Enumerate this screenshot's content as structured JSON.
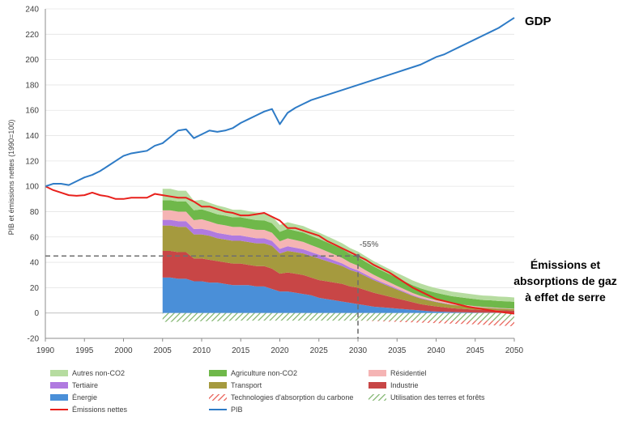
{
  "chart_data": {
    "type": "area",
    "ylabel": "PIB et émissions nettes (1990=100)",
    "xlim": [
      1990,
      2050
    ],
    "ylim": [
      -20,
      240
    ],
    "x_ticks": [
      "1990",
      "1995",
      "2000",
      "2005",
      "2010",
      "2015",
      "2020",
      "2025",
      "2030",
      "2035",
      "2040",
      "2045",
      "2050"
    ],
    "y_ticks": [
      "-20",
      "0",
      "20",
      "40",
      "60",
      "80",
      "100",
      "120",
      "140",
      "160",
      "180",
      "200",
      "220",
      "240"
    ],
    "annotations": {
      "gdp": "GDP",
      "emissions_line1": "Émissions et",
      "emissions_line2": "absorptions de gaz",
      "emissions_line3": "à effet de serre",
      "reduction": "-55%",
      "reduction_x": 2030,
      "reduction_y": 45
    },
    "area_x": [
      2005,
      2006,
      2007,
      2008,
      2009,
      2010,
      2011,
      2012,
      2013,
      2014,
      2015,
      2016,
      2017,
      2018,
      2019,
      2020,
      2021,
      2022,
      2023,
      2024,
      2025,
      2026,
      2027,
      2028,
      2029,
      2030,
      2031,
      2032,
      2033,
      2034,
      2035,
      2036,
      2037,
      2038,
      2039,
      2040,
      2041,
      2042,
      2043,
      2044,
      2045,
      2046,
      2047,
      2048,
      2049,
      2050
    ],
    "stacked_positive": [
      {
        "name": "Énergie",
        "color": "#4a8fd8",
        "values": [
          28,
          28,
          27,
          27,
          25,
          25,
          24,
          24,
          23,
          22,
          22,
          22,
          21,
          21,
          19,
          17,
          17,
          16,
          15,
          14,
          12,
          11,
          10,
          9,
          8,
          7,
          6,
          5,
          4.5,
          4,
          3.5,
          3,
          2.5,
          2,
          1.5,
          1.2,
          1,
          0.8,
          0.6,
          0.5,
          0.4,
          0.3,
          0.3,
          0.2,
          0.2,
          0.2
        ]
      },
      {
        "name": "Industrie",
        "color": "#c84646",
        "values": [
          21,
          21,
          21,
          21,
          18,
          18,
          18,
          17,
          17,
          17,
          17,
          16,
          16,
          16,
          16,
          14,
          15,
          15,
          15,
          14,
          14,
          14,
          14,
          14,
          13,
          13,
          12,
          11,
          10,
          9,
          8,
          7,
          6,
          5,
          4.5,
          4,
          3.5,
          3,
          2.8,
          2.5,
          2.3,
          2.1,
          2,
          1.9,
          1.8,
          1.7
        ]
      },
      {
        "name": "Transport",
        "color": "#a59a3e",
        "values": [
          20,
          20,
          20,
          20,
          19,
          19,
          19,
          18,
          18,
          18,
          18,
          18,
          18,
          18,
          18,
          16,
          17,
          17,
          17,
          17,
          17,
          16,
          15,
          14,
          13,
          12,
          11,
          10,
          9,
          8,
          7,
          6,
          5,
          4.5,
          4,
          3.5,
          3,
          2.7,
          2.4,
          2.2,
          2,
          1.8,
          1.6,
          1.4,
          1.2,
          1
        ]
      },
      {
        "name": "Tertiaire",
        "color": "#b07ae0",
        "values": [
          4.5,
          4.5,
          4.5,
          4.5,
          4.3,
          4.5,
          4.2,
          4.2,
          4.2,
          4.1,
          4.1,
          4,
          4,
          4,
          3.9,
          3.6,
          3.7,
          3.5,
          3.3,
          3.1,
          3,
          2.7,
          2.4,
          2.1,
          1.8,
          1.6,
          1.4,
          1.2,
          1,
          0.9,
          0.8,
          0.7,
          0.6,
          0.5,
          0.4,
          0.3,
          0.3,
          0.2,
          0.2,
          0.2,
          0.1,
          0.1,
          0.1,
          0.1,
          0.1,
          0.1
        ]
      },
      {
        "name": "Résidentiel",
        "color": "#f5b4b4",
        "values": [
          7.5,
          7.5,
          7.5,
          7.5,
          7,
          7.5,
          7,
          7,
          7,
          6.8,
          6.8,
          6.8,
          6.7,
          6.6,
          6.5,
          6,
          6.2,
          6,
          5.8,
          5.5,
          5.3,
          5,
          4.7,
          4.3,
          4,
          3.7,
          3.3,
          3,
          2.7,
          2.4,
          2.1,
          1.9,
          1.7,
          1.5,
          1.3,
          1.1,
          1,
          0.9,
          0.8,
          0.7,
          0.6,
          0.5,
          0.5,
          0.4,
          0.4,
          0.3
        ]
      },
      {
        "name": "Agriculture non-CO2",
        "color": "#6fb84a",
        "values": [
          8,
          8,
          8,
          8,
          7.8,
          7.8,
          7.8,
          7.7,
          7.7,
          7.6,
          7.6,
          7.6,
          7.6,
          7.5,
          7.5,
          7.5,
          7.5,
          7.4,
          7.4,
          7.3,
          7.3,
          7.2,
          7.1,
          7,
          6.9,
          6.8,
          6.7,
          6.6,
          6.5,
          6.4,
          6.3,
          6.2,
          6.1,
          6,
          5.9,
          5.8,
          5.8,
          5.7,
          5.7,
          5.6,
          5.6,
          5.5,
          5.5,
          5.5,
          5.5,
          5.5
        ]
      },
      {
        "name": "Autres non-CO2",
        "color": "#b6dca0",
        "values": [
          9,
          9,
          8.5,
          8.5,
          7.5,
          7.5,
          7,
          7,
          6.5,
          6,
          6,
          6,
          6,
          5.8,
          5.6,
          5.4,
          5.3,
          5.2,
          5.1,
          5,
          4.9,
          4.8,
          4.7,
          4.6,
          4.5,
          4.4,
          4.3,
          4.2,
          4.1,
          4,
          3.9,
          3.9,
          3.8,
          3.8,
          3.7,
          3.7,
          3.7,
          3.6,
          3.6,
          3.6,
          3.5,
          3.5,
          3.5,
          3.5,
          3.5,
          3.5
        ]
      }
    ],
    "stacked_negative": [
      {
        "name": "Utilisation des terres et forêts",
        "color": "#7db36a",
        "values": [
          -7,
          -7,
          -7,
          -7,
          -6.5,
          -6.5,
          -6.5,
          -6.5,
          -6.5,
          -6,
          -6,
          -6,
          -6,
          -6,
          -6,
          -6,
          -6,
          -6,
          -6,
          -6,
          -6,
          -6,
          -6,
          -6,
          -6,
          -6,
          -6,
          -6,
          -6,
          -6,
          -6,
          -6,
          -6,
          -6,
          -6,
          -6,
          -6,
          -6,
          -6,
          -6,
          -6,
          -6,
          -6,
          -6,
          -6,
          -6
        ]
      },
      {
        "name": "Technologies d'absorption du carbone",
        "color": "#e8594f",
        "values": [
          0,
          0,
          0,
          0,
          0,
          0,
          0,
          0,
          0,
          0,
          0,
          0,
          0,
          0,
          0,
          0,
          0,
          0,
          0,
          0,
          0,
          0,
          0,
          0,
          0,
          0,
          -0.2,
          -0.4,
          -0.6,
          -0.8,
          -1,
          -1.2,
          -1.4,
          -1.6,
          -1.8,
          -2,
          -2.2,
          -2.4,
          -2.6,
          -2.8,
          -3,
          -3.3,
          -3.6,
          -3.9,
          -4.2,
          -4.5
        ]
      }
    ],
    "lines": [
      {
        "name": "Émissions nettes",
        "color": "#e8201c",
        "x": [
          1990,
          1991,
          1992,
          1993,
          1994,
          1995,
          1996,
          1997,
          1998,
          1999,
          2000,
          2001,
          2002,
          2003,
          2004,
          2005,
          2006,
          2007,
          2008,
          2009,
          2010,
          2011,
          2012,
          2013,
          2014,
          2015,
          2016,
          2017,
          2018,
          2019,
          2020,
          2021,
          2022,
          2023,
          2024,
          2025,
          2026,
          2027,
          2028,
          2029,
          2030,
          2031,
          2032,
          2033,
          2034,
          2035,
          2036,
          2037,
          2038,
          2039,
          2040,
          2041,
          2042,
          2043,
          2044,
          2045,
          2046,
          2047,
          2048,
          2049,
          2050
        ],
        "values": [
          100,
          97,
          95,
          93,
          92.5,
          93,
          95,
          93,
          92,
          90,
          90,
          91,
          91,
          91,
          94,
          93,
          92,
          91,
          91,
          88,
          84,
          84,
          82,
          80,
          79,
          77,
          77,
          78,
          79,
          76,
          73,
          67,
          67,
          65,
          63,
          61,
          57,
          54,
          51,
          48,
          45,
          42,
          38,
          35,
          32,
          28,
          24,
          20,
          17,
          14,
          11,
          9.5,
          8,
          6.5,
          5,
          4,
          3,
          2,
          1,
          0.2,
          -0.5
        ]
      },
      {
        "name": "PIB",
        "color": "#2e7bc6",
        "x": [
          1990,
          1991,
          1992,
          1993,
          1994,
          1995,
          1996,
          1997,
          1998,
          1999,
          2000,
          2001,
          2002,
          2003,
          2004,
          2005,
          2006,
          2007,
          2008,
          2009,
          2010,
          2011,
          2012,
          2013,
          2014,
          2015,
          2016,
          2017,
          2018,
          2019,
          2020,
          2021,
          2022,
          2023,
          2024,
          2025,
          2026,
          2027,
          2028,
          2029,
          2030,
          2031,
          2032,
          2033,
          2034,
          2035,
          2036,
          2037,
          2038,
          2039,
          2040,
          2041,
          2042,
          2043,
          2044,
          2045,
          2046,
          2047,
          2048,
          2049,
          2050
        ],
        "values": [
          100,
          102,
          102,
          101,
          104,
          107,
          109,
          112,
          116,
          120,
          124,
          126,
          127,
          128,
          132,
          134,
          139,
          144,
          145,
          138,
          141,
          144,
          143,
          144,
          146,
          150,
          153,
          156,
          159,
          161,
          149,
          158,
          162,
          165,
          168,
          170,
          172,
          174,
          176,
          178,
          180,
          182,
          184,
          186,
          188,
          190,
          192,
          194,
          196,
          199,
          202,
          204,
          207,
          210,
          213,
          216,
          219,
          222,
          225,
          229,
          233
        ]
      }
    ],
    "legend": [
      {
        "label": "Autres non-CO2",
        "kind": "box",
        "color": "#b6dca0"
      },
      {
        "label": "Agriculture non-CO2",
        "kind": "box",
        "color": "#6fb84a"
      },
      {
        "label": "Résidentiel",
        "kind": "box",
        "color": "#f5b4b4"
      },
      {
        "label": "Tertiaire",
        "kind": "box",
        "color": "#b07ae0"
      },
      {
        "label": "Transport",
        "kind": "box",
        "color": "#a59a3e"
      },
      {
        "label": "Industrie",
        "kind": "box",
        "color": "#c84646"
      },
      {
        "label": "Énergie",
        "kind": "box",
        "color": "#4a8fd8"
      },
      {
        "label": "Technologies d'absorption du carbone",
        "kind": "hatch",
        "color": "#e8594f"
      },
      {
        "label": "Utilisation des terres et forêts",
        "kind": "hatch",
        "color": "#7db36a"
      },
      {
        "label": "Émissions nettes",
        "kind": "line",
        "color": "#e8201c"
      },
      {
        "label": "PIB",
        "kind": "line",
        "color": "#2e7bc6"
      }
    ]
  }
}
